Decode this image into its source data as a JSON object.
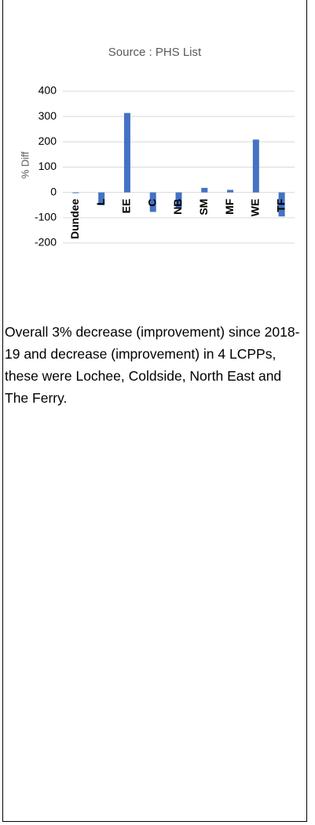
{
  "chart_data": {
    "type": "bar",
    "title": "Source : PHS List",
    "y_label": "% Diff",
    "categories": [
      "Dundee",
      "L",
      "EE",
      "C",
      "NB",
      "SM",
      "MF",
      "WE",
      "TF"
    ],
    "values": [
      -3,
      -50,
      314,
      -77,
      -60,
      18,
      10,
      209,
      -95
    ],
    "color": "#4472c4",
    "ylim": [
      -200,
      400
    ],
    "yticks": [
      -200,
      -100,
      0,
      100,
      200,
      300,
      400
    ],
    "grid": true
  },
  "body_text": "Overall 3% decrease (improvement) since 2018-19 and decrease (improvement) in 4 LCPPs, these were Lochee, Coldside, North East and The Ferry."
}
